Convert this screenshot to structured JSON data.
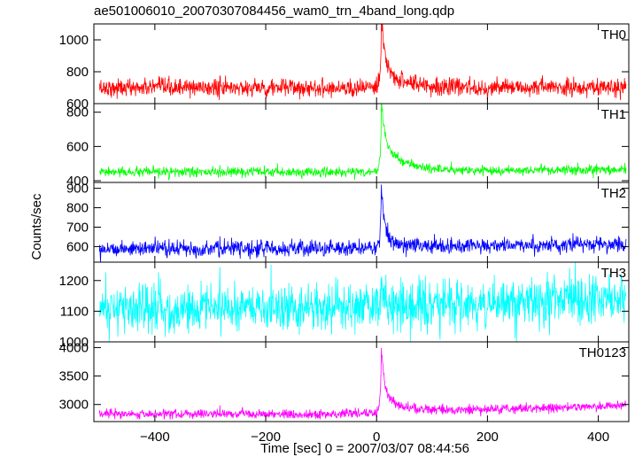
{
  "chart_data": {
    "type": "line",
    "title": "ae501006010_20070307084456_wam0_trn_4band_long.qdp",
    "xlabel": "Time [sec] 0 = 2007/03/07 08:44:56",
    "ylabel": "Counts/sec",
    "xlim": [
      -510,
      455
    ],
    "x_ticks": [
      -400,
      -200,
      0,
      200,
      400
    ],
    "x_tick_labels": [
      "−400",
      "−200",
      "0",
      "200",
      "400"
    ],
    "series": [
      {
        "name": "TH0",
        "color": "#ff0000",
        "ylim": [
          600,
          1100
        ],
        "y_ticks": [
          600,
          800,
          1000
        ],
        "y_tick_labels": [
          "600",
          "800",
          "1000"
        ],
        "baseline": 700,
        "noise": 28,
        "peak_x": 8,
        "peak_y": 1100,
        "tail": 120,
        "trend": 0,
        "x": [
          -500,
          -400,
          -300,
          -200,
          -100,
          -20,
          0,
          5,
          8,
          20,
          50,
          100,
          200,
          300,
          400,
          450
        ],
        "y": [
          705,
          700,
          700,
          700,
          705,
          700,
          760,
          1000,
          1100,
          900,
          760,
          720,
          710,
          710,
          715,
          720
        ]
      },
      {
        "name": "TH1",
        "color": "#00ff00",
        "ylim": [
          390,
          850
        ],
        "y_ticks": [
          400,
          600,
          800
        ],
        "y_tick_labels": [
          "400",
          "600",
          "800"
        ],
        "baseline": 450,
        "noise": 14,
        "peak_x": 8,
        "peak_y": 820,
        "tail": 160,
        "trend": 15,
        "x": [
          -500,
          -400,
          -300,
          -200,
          -100,
          -20,
          0,
          5,
          8,
          20,
          50,
          100,
          200,
          300,
          400,
          450
        ],
        "y": [
          455,
          450,
          450,
          450,
          455,
          455,
          520,
          760,
          820,
          600,
          520,
          480,
          465,
          465,
          470,
          475
        ]
      },
      {
        "name": "TH2",
        "color": "#0000ff",
        "ylim": [
          520,
          930
        ],
        "y_ticks": [
          600,
          700,
          800,
          900
        ],
        "y_tick_labels": [
          "600",
          "700",
          "800",
          "900"
        ],
        "baseline": 590,
        "noise": 20,
        "peak_x": 8,
        "peak_y": 930,
        "tail": 45,
        "trend": 25,
        "x": [
          -500,
          -400,
          -300,
          -200,
          -100,
          -20,
          0,
          5,
          8,
          20,
          50,
          100,
          200,
          300,
          400,
          450
        ],
        "y": [
          595,
          590,
          590,
          590,
          595,
          600,
          620,
          820,
          930,
          660,
          620,
          610,
          605,
          610,
          615,
          620
        ]
      },
      {
        "name": "TH3",
        "color": "#00ffff",
        "ylim": [
          1000,
          1260
        ],
        "y_ticks": [
          1000,
          1100,
          1200
        ],
        "y_tick_labels": [
          "1000",
          "1100",
          "1200"
        ],
        "baseline": 1110,
        "noise": 40,
        "peak_x": 8,
        "peak_y": 1180,
        "tail": 0,
        "trend": 30,
        "x": [
          -500,
          -400,
          -300,
          -200,
          -100,
          0,
          100,
          200,
          300,
          400,
          450
        ],
        "y": [
          1110,
          1110,
          1105,
          1110,
          1115,
          1120,
          1120,
          1125,
          1135,
          1140,
          1140
        ]
      },
      {
        "name": "TH0123",
        "color": "#ff00ff",
        "ylim": [
          2700,
          4100
        ],
        "y_ticks": [
          3000,
          3500,
          4000
        ],
        "y_tick_labels": [
          "3000",
          "3500",
          "4000"
        ],
        "baseline": 2830,
        "noise": 40,
        "peak_x": 8,
        "peak_y": 4000,
        "tail": 250,
        "trend": 150,
        "x": [
          -500,
          -400,
          -300,
          -200,
          -100,
          -20,
          0,
          5,
          8,
          20,
          50,
          100,
          200,
          300,
          400,
          450
        ],
        "y": [
          2830,
          2830,
          2830,
          2830,
          2840,
          2850,
          3000,
          3700,
          4000,
          3300,
          3050,
          2960,
          2930,
          2950,
          2980,
          3000
        ]
      }
    ]
  }
}
